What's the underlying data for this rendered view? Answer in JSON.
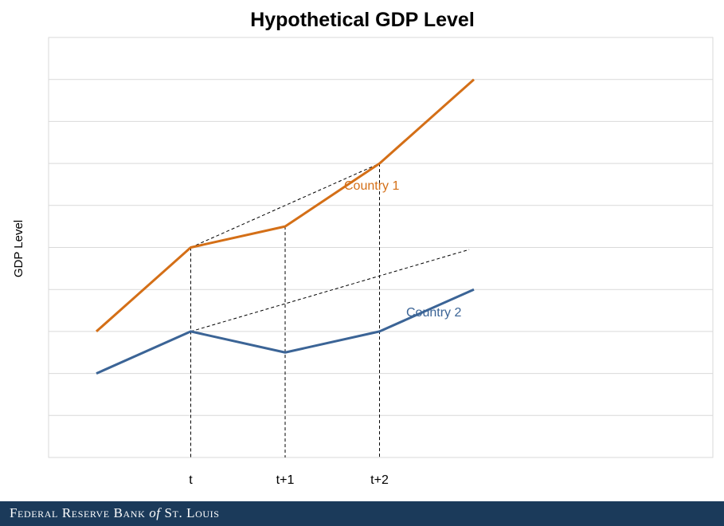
{
  "chart_data": {
    "type": "line",
    "title": "Hypothetical GDP Level",
    "xlabel": "",
    "ylabel": "GDP Level",
    "categories": [
      "",
      "t",
      "t+1",
      "t+2",
      ""
    ],
    "ylim": [
      0,
      10
    ],
    "grid": true,
    "yticks_labeled": false,
    "series": [
      {
        "name": "Country 1",
        "color": "#d46f17",
        "values": [
          3,
          5,
          5.5,
          7,
          9
        ]
      },
      {
        "name": "Country 2",
        "color": "#3b6496",
        "values": [
          2,
          3,
          2.5,
          3,
          4
        ]
      }
    ],
    "trend_lines": [
      {
        "style": "dashed",
        "color": "#000000",
        "from": [
          1,
          5
        ],
        "to": [
          3,
          7
        ]
      },
      {
        "style": "dashed",
        "color": "#000000",
        "from": [
          1,
          3
        ],
        "to": [
          3.95,
          4.95
        ]
      }
    ],
    "drop_lines": [
      {
        "style": "dashed",
        "x": 1,
        "y": 5
      },
      {
        "style": "dashed",
        "x": 2,
        "y": 5.5
      },
      {
        "style": "dashed",
        "x": 3,
        "y": 7
      }
    ]
  },
  "footer": {
    "brand_part1": "Federal Reserve Bank ",
    "brand_of": "of",
    "brand_part2": " St. Louis",
    "background": "#1b3a5a"
  }
}
